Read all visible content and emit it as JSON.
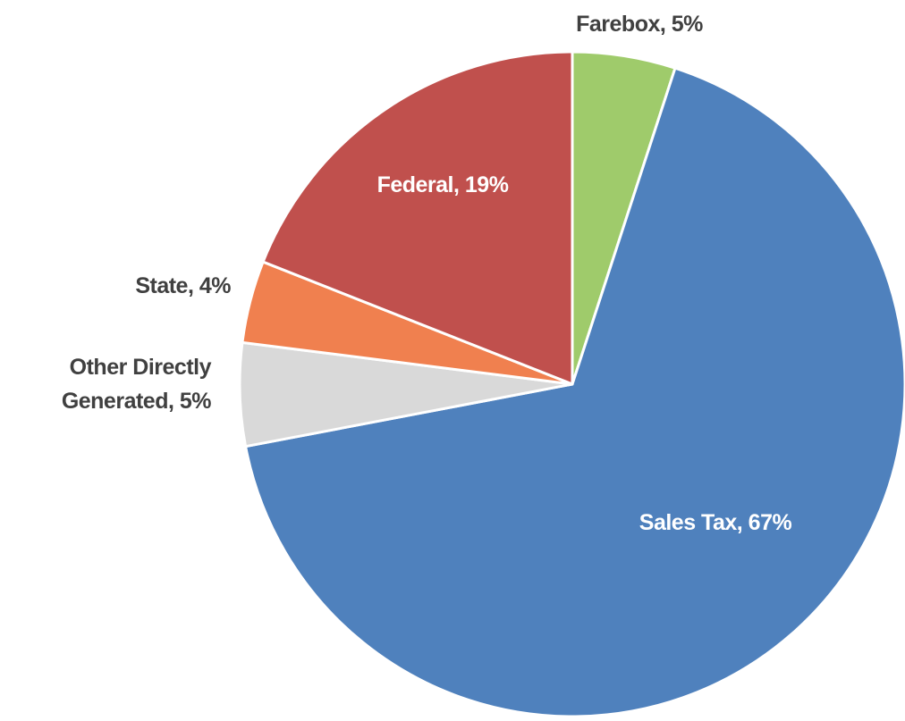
{
  "chart_data": {
    "type": "pie",
    "values": [
      5,
      67,
      5,
      4,
      19
    ],
    "value_labels": [
      "Farebox, 5%",
      "Sales Tax, 67%",
      "Other Directly Generated, 5%",
      "State, 4%",
      "Federal, 19%"
    ],
    "colors": [
      "#9fcb6b",
      "#4f81bd",
      "#d9d9d9",
      "#f0804f",
      "#c0504d"
    ]
  }
}
